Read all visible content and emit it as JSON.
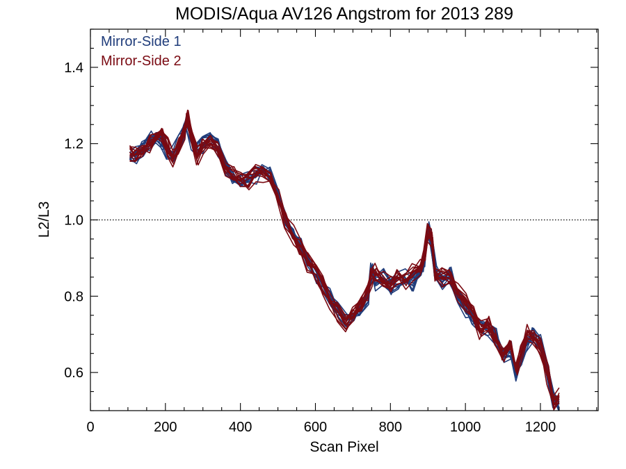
{
  "chart_data": {
    "type": "line",
    "title": "MODIS/Aqua AV126 Angstrom for 2013 289",
    "xlabel": "Scan Pixel",
    "ylabel": "L2/L3",
    "xlim": [
      0,
      1354
    ],
    "ylim": [
      0.5,
      1.5
    ],
    "x_ticks": [
      0,
      200,
      400,
      600,
      800,
      1000,
      1200
    ],
    "x_tick_labels": [
      "0",
      "200",
      "400",
      "600",
      "800",
      "1000",
      "1200"
    ],
    "y_ticks": [
      0.6,
      0.8,
      1.0,
      1.2,
      1.4
    ],
    "y_tick_labels": [
      "0.6",
      "0.8",
      "1.0",
      "1.2",
      "1.4"
    ],
    "x_minor_step": 50,
    "y_minor_step": 0.05,
    "reference_line": {
      "y": 1.0,
      "style": "dotted"
    },
    "legend_position": "top-left",
    "grid": false,
    "series": [
      {
        "name": "Mirror-Side 1",
        "color": "#1f3c7a",
        "trace_count": 12,
        "x": [
          105,
          120,
          140,
          160,
          175,
          190,
          205,
          220,
          235,
          250,
          258,
          270,
          285,
          300,
          320,
          340,
          360,
          380,
          400,
          420,
          440,
          460,
          480,
          500,
          520,
          540,
          560,
          580,
          600,
          620,
          640,
          660,
          680,
          700,
          720,
          740,
          750,
          760,
          780,
          800,
          820,
          840,
          860,
          880,
          890,
          900,
          910,
          920,
          940,
          960,
          980,
          1000,
          1020,
          1040,
          1060,
          1080,
          1100,
          1120,
          1135,
          1150,
          1165,
          1180,
          1200,
          1220,
          1235,
          1250
        ],
        "y": [
          1.16,
          1.17,
          1.19,
          1.21,
          1.22,
          1.21,
          1.18,
          1.17,
          1.2,
          1.24,
          1.26,
          1.21,
          1.18,
          1.2,
          1.21,
          1.19,
          1.14,
          1.11,
          1.1,
          1.11,
          1.12,
          1.13,
          1.12,
          1.07,
          1.0,
          0.97,
          0.93,
          0.9,
          0.86,
          0.83,
          0.8,
          0.77,
          0.74,
          0.75,
          0.77,
          0.8,
          0.87,
          0.84,
          0.85,
          0.83,
          0.84,
          0.85,
          0.84,
          0.87,
          0.88,
          0.98,
          0.94,
          0.86,
          0.84,
          0.86,
          0.8,
          0.77,
          0.74,
          0.72,
          0.72,
          0.7,
          0.65,
          0.66,
          0.6,
          0.64,
          0.68,
          0.7,
          0.68,
          0.6,
          0.53,
          0.52
        ]
      },
      {
        "name": "Mirror-Side 2",
        "color": "#7a0a12",
        "trace_count": 12,
        "x": [
          105,
          120,
          140,
          160,
          175,
          190,
          205,
          220,
          235,
          250,
          258,
          270,
          285,
          300,
          320,
          340,
          360,
          380,
          400,
          420,
          440,
          460,
          480,
          500,
          520,
          540,
          560,
          580,
          600,
          620,
          640,
          660,
          680,
          700,
          720,
          740,
          750,
          760,
          780,
          800,
          820,
          840,
          860,
          880,
          890,
          900,
          910,
          920,
          940,
          960,
          980,
          1000,
          1020,
          1040,
          1060,
          1080,
          1100,
          1120,
          1135,
          1150,
          1165,
          1180,
          1200,
          1220,
          1235,
          1250
        ],
        "y": [
          1.17,
          1.17,
          1.18,
          1.2,
          1.21,
          1.22,
          1.19,
          1.16,
          1.19,
          1.23,
          1.27,
          1.22,
          1.17,
          1.19,
          1.2,
          1.19,
          1.13,
          1.12,
          1.11,
          1.1,
          1.12,
          1.12,
          1.11,
          1.06,
          1.0,
          0.96,
          0.93,
          0.89,
          0.86,
          0.83,
          0.79,
          0.76,
          0.73,
          0.75,
          0.78,
          0.81,
          0.85,
          0.86,
          0.84,
          0.83,
          0.85,
          0.84,
          0.86,
          0.87,
          0.9,
          0.97,
          0.95,
          0.85,
          0.85,
          0.85,
          0.81,
          0.78,
          0.75,
          0.71,
          0.73,
          0.69,
          0.64,
          0.67,
          0.61,
          0.65,
          0.7,
          0.69,
          0.67,
          0.59,
          0.52,
          0.54
        ]
      }
    ]
  }
}
